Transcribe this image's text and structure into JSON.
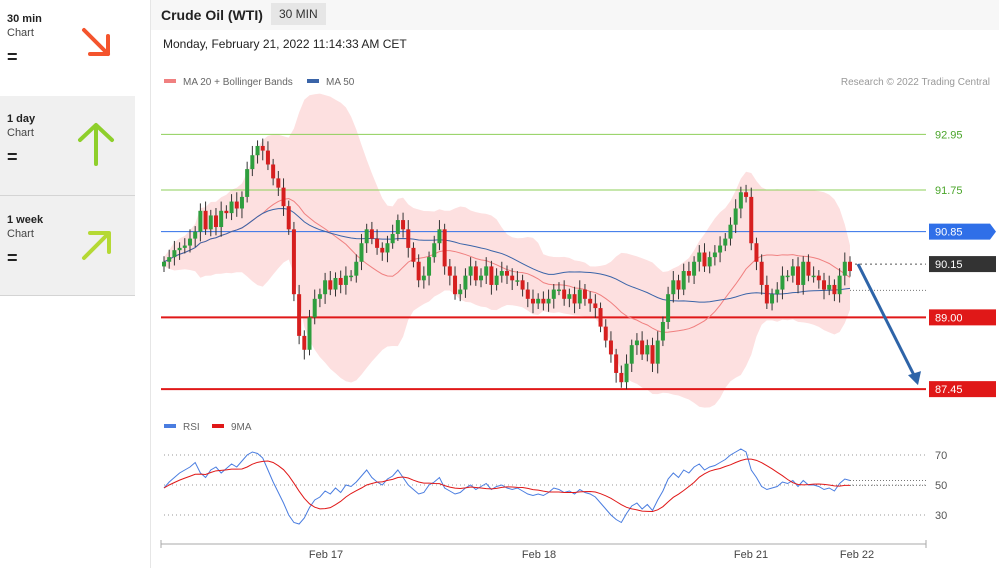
{
  "sidebar": {
    "timeframes": [
      {
        "period": "30 min",
        "sub": "Chart",
        "signal": "=",
        "direction": "down",
        "color": "#f4542d"
      },
      {
        "period": "1 day",
        "sub": "Chart",
        "signal": "=",
        "direction": "up",
        "color": "#8ecf2b"
      },
      {
        "period": "1 week",
        "sub": "Chart",
        "signal": "=",
        "direction": "up-right",
        "color": "#b5d934"
      }
    ]
  },
  "header": {
    "title": "Crude Oil (WTI)",
    "interval": "30 MIN",
    "timestamp": "Monday, February 21, 2022 11:14:33 AM CET"
  },
  "chart_data": [
    {
      "type": "candlestick",
      "legend": [
        {
          "name": "MA 20 + Bollinger Bands",
          "color": "#f08080"
        },
        {
          "name": "MA 50",
          "color": "#3a64a8"
        }
      ],
      "credit": "Research © 2022 Trading Central",
      "ylim": [
        87.0,
        93.8
      ],
      "levels": [
        {
          "value": 92.95,
          "label": "92.95",
          "color": "#8ecf5a",
          "style": "line"
        },
        {
          "value": 91.75,
          "label": "91.75",
          "color": "#8ecf5a",
          "style": "line"
        },
        {
          "value": 90.85,
          "label": "90.85",
          "color": "#2f6fe8",
          "style": "badge"
        },
        {
          "value": 90.15,
          "label": "90.15",
          "color": "#333333",
          "style": "badge"
        },
        {
          "value": 89.0,
          "label": "89.00",
          "color": "#e01818",
          "style": "badge"
        },
        {
          "value": 87.45,
          "label": "87.45",
          "color": "#e01818",
          "style": "badge"
        }
      ],
      "x_ticks": [
        "Feb 17",
        "Feb 18",
        "Feb 21",
        "Feb 22"
      ],
      "up_color": "#2e9e3e",
      "down_color": "#d61f1f",
      "closes": [
        90.2,
        90.3,
        90.45,
        90.5,
        90.55,
        90.7,
        90.85,
        91.3,
        90.9,
        91.2,
        90.95,
        91.3,
        91.25,
        91.5,
        91.35,
        91.6,
        92.2,
        92.5,
        92.7,
        92.6,
        92.3,
        92.0,
        91.8,
        91.4,
        90.9,
        89.5,
        88.6,
        88.3,
        89.0,
        89.4,
        89.5,
        89.8,
        89.6,
        89.85,
        89.7,
        89.9,
        89.9,
        90.2,
        90.6,
        90.9,
        90.7,
        90.5,
        90.4,
        90.6,
        90.8,
        91.1,
        90.9,
        90.5,
        90.2,
        89.8,
        89.9,
        90.3,
        90.6,
        90.9,
        90.1,
        89.9,
        89.5,
        89.6,
        89.9,
        90.1,
        89.8,
        89.9,
        90.1,
        89.7,
        89.9,
        90.0,
        89.9,
        89.8,
        89.8,
        89.6,
        89.4,
        89.3,
        89.4,
        89.3,
        89.4,
        89.6,
        89.6,
        89.4,
        89.5,
        89.3,
        89.6,
        89.4,
        89.3,
        89.2,
        88.8,
        88.5,
        88.2,
        87.8,
        87.6,
        88.0,
        88.4,
        88.5,
        88.2,
        88.4,
        88.0,
        88.5,
        88.9,
        89.5,
        89.8,
        89.6,
        90.0,
        89.9,
        90.2,
        90.4,
        90.1,
        90.3,
        90.4,
        90.55,
        90.7,
        91.0,
        91.35,
        91.7,
        91.6,
        90.6,
        90.2,
        89.7,
        89.3,
        89.5,
        89.6,
        89.9,
        89.9,
        90.1,
        89.7,
        90.2,
        89.9,
        89.9,
        89.8,
        89.6,
        89.7,
        89.5,
        89.9,
        90.2,
        90.0
      ],
      "forecast": {
        "from": 90.15,
        "to": 87.45
      }
    },
    {
      "type": "line",
      "legend": [
        {
          "name": "RSI",
          "color": "#4a7de0"
        },
        {
          "name": "9MA",
          "color": "#e01818"
        }
      ],
      "ylim": [
        20,
        80
      ],
      "y_ticks": [
        70,
        50,
        30
      ],
      "rsi": [
        48,
        52,
        55,
        58,
        60,
        62,
        65,
        58,
        55,
        60,
        62,
        58,
        61,
        64,
        62,
        66,
        70,
        72,
        71,
        68,
        60,
        52,
        45,
        38,
        30,
        25,
        24,
        28,
        35,
        40,
        42,
        46,
        44,
        48,
        45,
        50,
        49,
        52,
        56,
        60,
        55,
        52,
        50,
        54,
        56,
        60,
        55,
        50,
        47,
        44,
        45,
        50,
        52,
        55,
        48,
        46,
        44,
        45,
        48,
        50,
        47,
        49,
        51,
        47,
        49,
        50,
        48,
        47,
        48,
        46,
        44,
        43,
        44,
        43,
        45,
        48,
        47,
        45,
        46,
        44,
        47,
        45,
        44,
        42,
        38,
        34,
        30,
        27,
        25,
        31,
        36,
        38,
        34,
        37,
        33,
        40,
        46,
        54,
        58,
        55,
        60,
        58,
        62,
        64,
        60,
        62,
        63,
        65,
        67,
        70,
        72,
        74,
        72,
        60,
        55,
        49,
        47,
        48,
        49,
        52,
        51,
        53,
        49,
        53,
        50,
        50,
        49,
        47,
        48,
        46,
        51,
        54,
        53
      ]
    }
  ]
}
